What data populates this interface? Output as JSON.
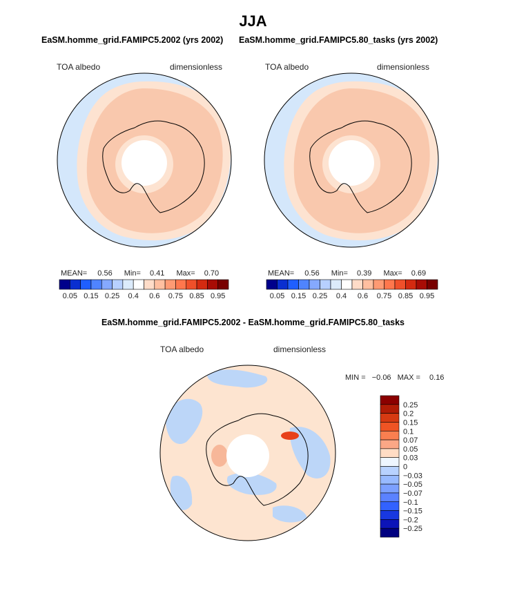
{
  "page_title": "JJA",
  "panels": [
    {
      "title": "EaSM.homme_grid.FAMIPC5.2002 (yrs 2002)",
      "variable": "TOA albedo",
      "units": "dimensionless",
      "stats": {
        "mean_label": "MEAN=",
        "mean": "0.56",
        "min_label": "Min=",
        "min": "0.41",
        "max_label": "Max=",
        "max": "0.70"
      }
    },
    {
      "title": "EaSM.homme_grid.FAMIPC5.80_tasks (yrs 2002)",
      "variable": "TOA albedo",
      "units": "dimensionless",
      "stats": {
        "mean_label": "MEAN=",
        "mean": "0.56",
        "min_label": "Min=",
        "min": "0.39",
        "max_label": "Max=",
        "max": "0.69"
      }
    }
  ],
  "colorbar": {
    "colors": [
      "#00008b",
      "#0a2fd0",
      "#1f5fff",
      "#4f84ff",
      "#85a9ff",
      "#b7d0ff",
      "#dcebfb",
      "#ffffff",
      "#ffdcc8",
      "#ffbfa0",
      "#ff9a73",
      "#ff774d",
      "#f0502a",
      "#d42a10",
      "#a80c05",
      "#780000"
    ],
    "tick_labels": [
      "0.05",
      "0.15",
      "0.25",
      "0.4",
      "0.6",
      "0.75",
      "0.85",
      "0.95"
    ]
  },
  "diff": {
    "title": "EaSM.homme_grid.FAMIPC5.2002 - EaSM.homme_grid.FAMIPC5.80_tasks",
    "variable": "TOA albedo",
    "units": "dimensionless",
    "min_label": "MIN =",
    "min": "−0.06",
    "max_label": "MAX =",
    "max": "0.16",
    "colorbar_colors": [
      "#8b0000",
      "#b01c06",
      "#d63a12",
      "#ef5424",
      "#fa7f50",
      "#fba786",
      "#ffdcc4",
      "#eef6ff",
      "#b8d2ff",
      "#98baff",
      "#7ca0ff",
      "#5b82ff",
      "#3262ff",
      "#1838e0",
      "#0c14b8",
      "#000080"
    ],
    "colorbar_labels": [
      "0.25",
      "0.2",
      "0.15",
      "0.1",
      "0.07",
      "0.05",
      "0.03",
      "0",
      "−0.03",
      "−0.05",
      "−0.07",
      "−0.1",
      "−0.15",
      "−0.2",
      "−0.25"
    ]
  },
  "colors": {
    "map_high": "#f9c8ad",
    "map_mid": "#fde3d1",
    "map_low": "#d4e7fb",
    "diff_pos": "#fde4d0",
    "diff_neg": "#bcd6f8",
    "diff_peak": "#e8401a"
  }
}
